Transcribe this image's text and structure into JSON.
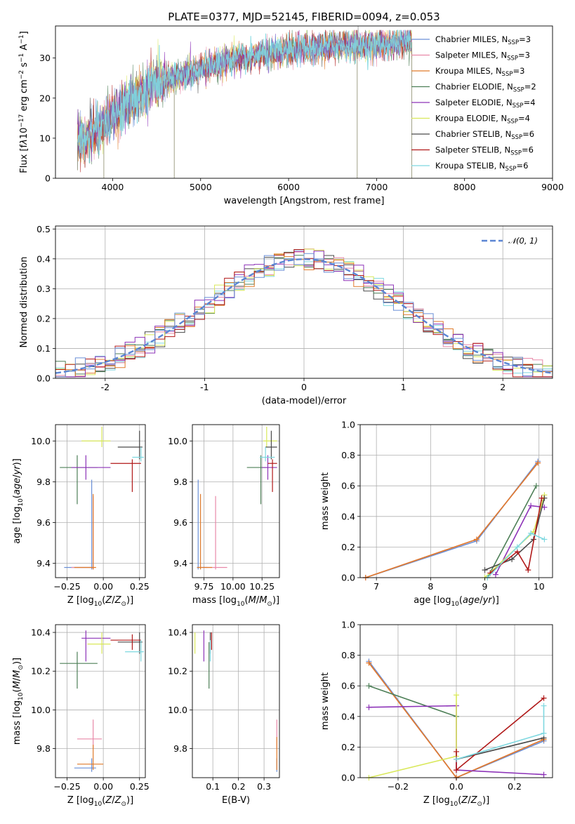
{
  "title": "PLATE=0377, MJD=52145, FIBERID=0094, z=0.053",
  "colors": {
    "series": [
      "#6a8fd6",
      "#e888a8",
      "#e07b2b",
      "#4d7f57",
      "#8d33b8",
      "#d9e85a",
      "#4a4a4a",
      "#b01818",
      "#7fd8e0"
    ],
    "grid": "#b0b0b0",
    "normal_curve": "#5b86d4"
  },
  "chart_data": [
    {
      "id": "spectrum",
      "type": "line",
      "xlabel": "wavelength [Angstrom, rest frame]",
      "ylabel_html": "Flux [f<tspan font-style='italic'>λ</tspan>10<tspan dy='-5' font-size='9'>−17</tspan><tspan dy='5'> erg cm</tspan><tspan dy='-5' font-size='9'>−2</tspan><tspan dy='5'> s</tspan><tspan dy='-5' font-size='9'>−1</tspan><tspan dy='5'> A</tspan><tspan dy='-5' font-size='9'>−1</tspan><tspan dy='5'>]</tspan>",
      "xlim": [
        3350,
        9000
      ],
      "ylim": [
        0,
        38
      ],
      "xticks": [
        4000,
        5000,
        6000,
        7000,
        8000,
        9000
      ],
      "yticks": [
        0,
        10,
        20,
        30
      ],
      "envelope": {
        "x": [
          3600,
          3700,
          3800,
          3900,
          4000,
          4100,
          4200,
          4300,
          4400,
          4500,
          4700,
          4900,
          5100,
          5300,
          5500,
          5700,
          5900,
          6100,
          6300,
          6500,
          6700,
          6900,
          7100,
          7300,
          7400
        ],
        "y": [
          9,
          10.5,
          12,
          13.5,
          15.5,
          17,
          19,
          20.5,
          22,
          24,
          25,
          26.5,
          28,
          29.5,
          30,
          31,
          31.5,
          32,
          32.5,
          33,
          33,
          33,
          33.5,
          34,
          34
        ]
      },
      "legend": [
        {
          "label": "Chabrier MILES, N",
          "sub": "SSP",
          "suffix": "=3"
        },
        {
          "label": "Salpeter MILES, N",
          "sub": "SSP",
          "suffix": "=3"
        },
        {
          "label": "Kroupa MILES, N",
          "sub": "SSP",
          "suffix": "=3"
        },
        {
          "label": "Chabrier ELODIE, N",
          "sub": "SSP",
          "suffix": "=2"
        },
        {
          "label": "Salpeter ELODIE, N",
          "sub": "SSP",
          "suffix": "=4"
        },
        {
          "label": "Kroupa ELODIE, N",
          "sub": "SSP",
          "suffix": "=4"
        },
        {
          "label": "Chabrier STELIB, N",
          "sub": "SSP",
          "suffix": "=6"
        },
        {
          "label": "Salpeter STELIB, N",
          "sub": "SSP",
          "suffix": "=6"
        },
        {
          "label": "Kroupa STELIB, N",
          "sub": "SSP",
          "suffix": "=6"
        }
      ]
    },
    {
      "id": "residuals",
      "type": "step",
      "xlabel": "(data-model)/error",
      "ylabel": "Normed distribution",
      "xlim": [
        -2.5,
        2.5
      ],
      "ylim": [
        0,
        0.51
      ],
      "xticks": [
        -2,
        -1,
        0,
        1,
        2
      ],
      "yticks": [
        0.0,
        0.1,
        0.2,
        0.3,
        0.4,
        0.5
      ],
      "bin_width": 0.1,
      "curve_label": "𝒩(0, 1)"
    },
    {
      "id": "age_vs_Z",
      "type": "errorbar",
      "xlabel_html": "Z [log<tspan dy='4' font-size='9'>10</tspan><tspan dy='-4'>(</tspan><tspan font-style='italic'>Z</tspan>/<tspan font-style='italic'>Z</tspan><tspan dy='4' font-size='9'>⊙</tspan><tspan dy='-4'>)]</tspan>",
      "ylabel_html": "age  [log<tspan dy='4' font-size='9'>10</tspan><tspan dy='-4'>(</tspan><tspan font-style='italic'>age</tspan>/<tspan font-style='italic'>yr</tspan>)]",
      "xlim": [
        -0.33,
        0.29
      ],
      "ylim": [
        9.33,
        10.08
      ],
      "xticks": [
        -0.25,
        0.0,
        0.25
      ],
      "xticklabels": [
        "−0.25",
        "0.00",
        "0.25"
      ],
      "yticks": [
        9.4,
        9.6,
        9.8,
        10.0
      ],
      "points": [
        {
          "s": 0,
          "x": -0.08,
          "y": 9.38,
          "xe": [
            -0.27,
            -0.07
          ],
          "ye": [
            9.37,
            9.81
          ]
        },
        {
          "s": 1,
          "x": -0.07,
          "y": 9.38,
          "xe": [
            -0.22,
            -0.07
          ],
          "ye": [
            9.37,
            9.73
          ]
        },
        {
          "s": 2,
          "x": -0.07,
          "y": 9.38,
          "xe": [
            -0.2,
            -0.05
          ],
          "ye": [
            9.37,
            9.74
          ]
        },
        {
          "s": 3,
          "x": -0.18,
          "y": 9.87,
          "xe": [
            -0.3,
            -0.04
          ],
          "ye": [
            9.69,
            9.93
          ]
        },
        {
          "s": 4,
          "x": -0.12,
          "y": 9.87,
          "xe": [
            -0.22,
            0.05
          ],
          "ye": [
            9.81,
            9.93
          ]
        },
        {
          "s": 5,
          "x": -0.01,
          "y": 10.0,
          "xe": [
            -0.15,
            0.05
          ],
          "ye": [
            9.97,
            10.07
          ]
        },
        {
          "s": 6,
          "x": 0.25,
          "y": 9.97,
          "xe": [
            0.1,
            0.27
          ],
          "ye": [
            9.91,
            10.05
          ]
        },
        {
          "s": 7,
          "x": 0.2,
          "y": 9.89,
          "xe": [
            0.05,
            0.26
          ],
          "ye": [
            9.75,
            9.91
          ]
        },
        {
          "s": 8,
          "x": 0.26,
          "y": 9.92,
          "xe": [
            0.2,
            0.28
          ],
          "ye": [
            9.9,
            9.97
          ]
        }
      ]
    },
    {
      "id": "age_vs_mass",
      "type": "errorbar",
      "xlabel_html": "mass [log<tspan dy='4' font-size='9'>10</tspan><tspan dy='-4'>(</tspan><tspan font-style='italic'>M</tspan>/<tspan font-style='italic'>M</tspan><tspan dy='4' font-size='9'>⊙</tspan><tspan dy='-4'>)]</tspan>",
      "xlim": [
        9.65,
        10.4
      ],
      "ylim": [
        9.33,
        10.08
      ],
      "xticks": [
        9.75,
        10.0,
        10.25
      ],
      "xticklabels": [
        "9.75",
        "10.00",
        "10.25"
      ],
      "yticks": [
        9.4,
        9.6,
        9.8,
        10.0
      ],
      "points": [
        {
          "s": 0,
          "x": 9.7,
          "y": 9.38,
          "xe": [
            9.69,
            9.78
          ],
          "ye": [
            9.37,
            9.81
          ]
        },
        {
          "s": 1,
          "x": 9.85,
          "y": 9.38,
          "xe": [
            9.74,
            9.95
          ],
          "ye": [
            9.37,
            9.73
          ]
        },
        {
          "s": 2,
          "x": 9.72,
          "y": 9.38,
          "xe": [
            9.69,
            9.82
          ],
          "ye": [
            9.37,
            9.74
          ]
        },
        {
          "s": 3,
          "x": 10.24,
          "y": 9.87,
          "xe": [
            10.12,
            10.3
          ],
          "ye": [
            9.69,
            9.93
          ]
        },
        {
          "s": 4,
          "x": 10.3,
          "y": 9.87,
          "xe": [
            10.25,
            10.38
          ],
          "ye": [
            9.81,
            9.93
          ]
        },
        {
          "s": 5,
          "x": 10.29,
          "y": 10.0,
          "xe": [
            10.26,
            10.38
          ],
          "ye": [
            9.97,
            10.07
          ]
        },
        {
          "s": 6,
          "x": 10.33,
          "y": 9.97,
          "xe": [
            10.28,
            10.38
          ],
          "ye": [
            9.91,
            10.05
          ]
        },
        {
          "s": 7,
          "x": 10.34,
          "y": 9.89,
          "xe": [
            10.3,
            10.38
          ],
          "ye": [
            9.75,
            9.91
          ]
        },
        {
          "s": 8,
          "x": 10.28,
          "y": 9.92,
          "xe": [
            10.23,
            10.36
          ],
          "ye": [
            9.9,
            9.97
          ]
        }
      ]
    },
    {
      "id": "weight_vs_age",
      "type": "line",
      "xlabel_html": "age  [log<tspan dy='4' font-size='9'>10</tspan><tspan dy='-4'>(</tspan><tspan font-style='italic'>age</tspan>/<tspan font-style='italic'>yr</tspan>)]",
      "ylabel": "mass weight",
      "xlim": [
        6.7,
        10.25
      ],
      "ylim": [
        0,
        1
      ],
      "xticks": [
        7,
        8,
        9,
        10
      ],
      "yticks": [
        0.0,
        0.2,
        0.4,
        0.6,
        0.8,
        1.0
      ],
      "series": [
        {
          "s": 0,
          "x": [
            6.8,
            8.85,
            9.98
          ],
          "y": [
            0.0,
            0.24,
            0.76
          ]
        },
        {
          "s": 1,
          "x": [
            6.8,
            8.85,
            9.98
          ],
          "y": [
            0.0,
            0.25,
            0.75
          ]
        },
        {
          "s": 2,
          "x": [
            6.8,
            8.85,
            9.98
          ],
          "y": [
            0.0,
            0.25,
            0.75
          ]
        },
        {
          "s": 3,
          "x": [
            9.05,
            9.95
          ],
          "y": [
            0.0,
            0.6
          ]
        },
        {
          "s": 4,
          "x": [
            9.2,
            9.85,
            10.1
          ],
          "y": [
            0.02,
            0.47,
            0.46
          ]
        },
        {
          "s": 5,
          "x": [
            9.0,
            9.9,
            10.1
          ],
          "y": [
            0.0,
            0.3,
            0.54
          ]
        },
        {
          "s": 6,
          "x": [
            9.0,
            9.5,
            9.9,
            10.1
          ],
          "y": [
            0.05,
            0.12,
            0.25,
            0.52
          ]
        },
        {
          "s": 7,
          "x": [
            9.1,
            9.6,
            9.8,
            10.05
          ],
          "y": [
            0.03,
            0.17,
            0.05,
            0.52
          ]
        },
        {
          "s": 8,
          "x": [
            9.05,
            9.6,
            9.85,
            10.1
          ],
          "y": [
            0.0,
            0.2,
            0.29,
            0.25
          ]
        }
      ]
    },
    {
      "id": "mass_vs_Z",
      "type": "errorbar",
      "xlabel_html": "Z [log<tspan dy='4' font-size='9'>10</tspan><tspan dy='-4'>(</tspan><tspan font-style='italic'>Z</tspan>/<tspan font-style='italic'>Z</tspan><tspan dy='4' font-size='9'>⊙</tspan><tspan dy='-4'>)]</tspan>",
      "ylabel_html": "mass [log<tspan dy='4' font-size='9'>10</tspan><tspan dy='-4'>(</tspan><tspan font-style='italic'>M</tspan>/<tspan font-style='italic'>M</tspan><tspan dy='4' font-size='9'>⊙</tspan><tspan dy='-4'>)]</tspan>",
      "xlim": [
        -0.33,
        0.29
      ],
      "ylim": [
        9.65,
        10.44
      ],
      "xticks": [
        -0.25,
        0.0,
        0.25
      ],
      "xticklabels": [
        "−0.25",
        "0.00",
        "0.25"
      ],
      "yticks": [
        9.8,
        10.0,
        10.2,
        10.4
      ],
      "points": [
        {
          "s": 0,
          "x": -0.08,
          "y": 9.7,
          "xe": [
            -0.2,
            -0.05
          ],
          "ye": [
            9.68,
            9.75
          ]
        },
        {
          "s": 1,
          "x": -0.07,
          "y": 9.85,
          "xe": [
            -0.18,
            -0.01
          ],
          "ye": [
            9.8,
            9.95
          ]
        },
        {
          "s": 2,
          "x": -0.07,
          "y": 9.72,
          "xe": [
            -0.18,
            0.0
          ],
          "ye": [
            9.69,
            9.82
          ]
        },
        {
          "s": 3,
          "x": -0.18,
          "y": 10.24,
          "xe": [
            -0.3,
            -0.04
          ],
          "ye": [
            10.11,
            10.3
          ]
        },
        {
          "s": 4,
          "x": -0.12,
          "y": 10.37,
          "xe": [
            -0.15,
            0.05
          ],
          "ye": [
            10.25,
            10.41
          ]
        },
        {
          "s": 5,
          "x": -0.01,
          "y": 10.34,
          "xe": [
            -0.11,
            0.05
          ],
          "ye": [
            10.29,
            10.4
          ]
        },
        {
          "s": 6,
          "x": 0.25,
          "y": 10.35,
          "xe": [
            0.1,
            0.27
          ],
          "ye": [
            10.29,
            10.4
          ]
        },
        {
          "s": 7,
          "x": 0.2,
          "y": 10.36,
          "xe": [
            0.05,
            0.26
          ],
          "ye": [
            10.31,
            10.39
          ]
        },
        {
          "s": 8,
          "x": 0.26,
          "y": 10.3,
          "xe": [
            0.15,
            0.28
          ],
          "ye": [
            10.25,
            10.36
          ]
        }
      ]
    },
    {
      "id": "mass_vs_ebv",
      "type": "errorbar",
      "xlabel": "E(B-V)",
      "xlim": [
        0.02,
        0.36
      ],
      "ylim": [
        9.65,
        10.44
      ],
      "xticks": [
        0.1,
        0.2,
        0.3
      ],
      "xticklabels": [
        "0.1",
        "0.2",
        "0.3"
      ],
      "yticks": [
        9.8,
        10.0,
        10.2,
        10.4
      ],
      "points": [
        {
          "s": 0,
          "x": 0.35,
          "y": 9.7,
          "ye": [
            9.68,
            9.75
          ]
        },
        {
          "s": 1,
          "x": 0.35,
          "y": 9.85,
          "ye": [
            9.8,
            9.95
          ]
        },
        {
          "s": 2,
          "x": 0.35,
          "y": 9.72,
          "ye": [
            9.69,
            9.86
          ]
        },
        {
          "s": 3,
          "x": 0.085,
          "y": 10.24,
          "ye": [
            10.11,
            10.35
          ]
        },
        {
          "s": 4,
          "x": 0.065,
          "y": 10.37,
          "ye": [
            10.25,
            10.41
          ]
        },
        {
          "s": 5,
          "x": 0.03,
          "y": 10.34,
          "ye": [
            10.29,
            10.4
          ]
        },
        {
          "s": 6,
          "x": 0.09,
          "y": 10.35,
          "ye": [
            10.29,
            10.4
          ]
        },
        {
          "s": 7,
          "x": 0.095,
          "y": 10.36,
          "ye": [
            10.31,
            10.4
          ]
        },
        {
          "s": 8,
          "x": 0.09,
          "y": 10.3,
          "ye": [
            10.25,
            10.36
          ]
        }
      ]
    },
    {
      "id": "weight_vs_Z",
      "type": "line",
      "xlabel_html": "Z [log<tspan dy='4' font-size='9'>10</tspan><tspan dy='-4'>(</tspan><tspan font-style='italic'>Z</tspan>/<tspan font-style='italic'>Z</tspan><tspan dy='4' font-size='9'>⊙</tspan><tspan dy='-4'>)]</tspan>",
      "ylabel": "mass weight",
      "xlim": [
        -0.33,
        0.33
      ],
      "ylim": [
        0,
        1
      ],
      "xticks": [
        -0.2,
        0.0,
        0.2
      ],
      "xticklabels": [
        "−0.2",
        "0.0",
        "0.2"
      ],
      "yticks": [
        0.0,
        0.2,
        0.4,
        0.6,
        0.8,
        1.0
      ],
      "series": [
        {
          "s": 0,
          "x": [
            -0.3,
            0.0,
            0.3
          ],
          "y": [
            0.76,
            0.0,
            0.24
          ]
        },
        {
          "s": 1,
          "x": [
            -0.3,
            0.0,
            0.3
          ],
          "y": [
            0.75,
            0.0,
            0.25
          ]
        },
        {
          "s": 2,
          "x": [
            -0.3,
            0.0,
            0.3
          ],
          "y": [
            0.75,
            0.0,
            0.25
          ]
        },
        {
          "s": 3,
          "x": [
            -0.3,
            0.0
          ],
          "y": [
            0.6,
            0.4
          ]
        },
        {
          "s": 4,
          "x": [
            -0.3,
            0.0,
            0.0,
            0.3
          ],
          "y": [
            0.46,
            0.47,
            0.05,
            0.02
          ]
        },
        {
          "s": 5,
          "x": [
            -0.3,
            0.0,
            0.0
          ],
          "y": [
            0.0,
            0.14,
            0.54
          ]
        },
        {
          "s": 6,
          "x": [
            0.0,
            0.3
          ],
          "y": [
            0.12,
            0.26
          ]
        },
        {
          "s": 7,
          "x": [
            0.0,
            0.0,
            0.3
          ],
          "y": [
            0.17,
            0.05,
            0.52
          ]
        },
        {
          "s": 8,
          "x": [
            0.0,
            0.3,
            0.3
          ],
          "y": [
            0.12,
            0.29,
            0.47
          ]
        }
      ]
    }
  ]
}
